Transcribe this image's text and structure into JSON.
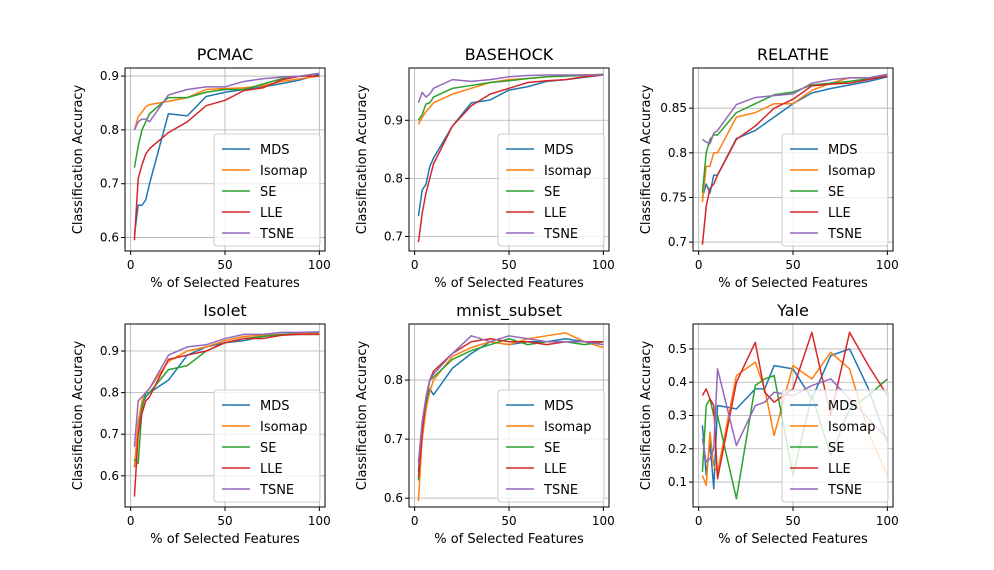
{
  "colors": {
    "MDS": "#1f77b4",
    "Isomap": "#ff7f0e",
    "SE": "#2ca02c",
    "LLE": "#d62728",
    "TSNE": "#9467bd"
  },
  "chart_data": [
    {
      "type": "line",
      "title": "PCMAC",
      "xlabel": "% of Selected Features",
      "ylabel": "Classification Accuracy",
      "xlim": [
        -3,
        103
      ],
      "ylim": [
        0.575,
        0.915
      ],
      "xticks": [
        0,
        50,
        100
      ],
      "yticks": [
        0.6,
        0.7,
        0.8,
        0.9
      ],
      "grid": true,
      "legend": "lower-right",
      "x": [
        2,
        4,
        6,
        8,
        10,
        20,
        30,
        40,
        50,
        60,
        70,
        80,
        90,
        100
      ],
      "series": [
        {
          "name": "MDS",
          "values": [
            0.605,
            0.66,
            0.66,
            0.67,
            0.7,
            0.83,
            0.826,
            0.862,
            0.87,
            0.875,
            0.88,
            0.886,
            0.893,
            0.903
          ]
        },
        {
          "name": "Isomap",
          "values": [
            0.8,
            0.825,
            0.833,
            0.843,
            0.847,
            0.853,
            0.86,
            0.875,
            0.877,
            0.878,
            0.882,
            0.89,
            0.895,
            0.9
          ]
        },
        {
          "name": "SE",
          "values": [
            0.73,
            0.77,
            0.8,
            0.815,
            0.83,
            0.86,
            0.86,
            0.87,
            0.875,
            0.875,
            0.885,
            0.895,
            0.9,
            0.905
          ]
        },
        {
          "name": "LLE",
          "values": [
            0.595,
            0.71,
            0.735,
            0.755,
            0.765,
            0.795,
            0.815,
            0.845,
            0.855,
            0.873,
            0.878,
            0.893,
            0.9,
            0.9
          ]
        },
        {
          "name": "TSNE",
          "values": [
            0.8,
            0.815,
            0.82,
            0.82,
            0.815,
            0.865,
            0.875,
            0.88,
            0.88,
            0.89,
            0.895,
            0.898,
            0.9,
            0.905
          ]
        }
      ]
    },
    {
      "type": "line",
      "title": "BASEHOCK",
      "xlabel": "% of Selected Features",
      "ylabel": "Classification Accuracy",
      "xlim": [
        -3,
        103
      ],
      "ylim": [
        0.675,
        0.99
      ],
      "xticks": [
        0,
        50,
        100
      ],
      "yticks": [
        0.7,
        0.8,
        0.9
      ],
      "grid": true,
      "legend": "lower-right",
      "x": [
        2,
        4,
        6,
        8,
        10,
        20,
        30,
        40,
        50,
        60,
        70,
        80,
        90,
        100
      ],
      "series": [
        {
          "name": "MDS",
          "values": [
            0.735,
            0.78,
            0.79,
            0.82,
            0.835,
            0.89,
            0.93,
            0.935,
            0.952,
            0.958,
            0.967,
            0.97,
            0.974,
            0.978
          ]
        },
        {
          "name": "Isomap",
          "values": [
            0.893,
            0.905,
            0.915,
            0.922,
            0.93,
            0.945,
            0.955,
            0.965,
            0.97,
            0.972,
            0.975,
            0.977,
            0.978,
            0.979
          ]
        },
        {
          "name": "SE",
          "values": [
            0.9,
            0.91,
            0.928,
            0.93,
            0.94,
            0.955,
            0.96,
            0.965,
            0.968,
            0.972,
            0.975,
            0.976,
            0.977,
            0.979
          ]
        },
        {
          "name": "LLE",
          "values": [
            0.69,
            0.74,
            0.775,
            0.8,
            0.825,
            0.89,
            0.925,
            0.945,
            0.955,
            0.965,
            0.968,
            0.97,
            0.975,
            0.978
          ]
        },
        {
          "name": "TSNE",
          "values": [
            0.93,
            0.948,
            0.94,
            0.945,
            0.955,
            0.97,
            0.967,
            0.97,
            0.975,
            0.977,
            0.978,
            0.978,
            0.978,
            0.978
          ]
        }
      ]
    },
    {
      "type": "line",
      "title": "RELATHE",
      "xlabel": "% of Selected Features",
      "ylabel": "Classification Accuracy",
      "xlim": [
        -3,
        103
      ],
      "ylim": [
        0.69,
        0.895
      ],
      "xticks": [
        0,
        50,
        100
      ],
      "yticks": [
        0.7,
        0.75,
        0.8,
        0.85
      ],
      "grid": true,
      "legend": "lower-right",
      "x": [
        2,
        4,
        6,
        8,
        10,
        20,
        30,
        40,
        50,
        60,
        70,
        80,
        90,
        100
      ],
      "series": [
        {
          "name": "MDS",
          "values": [
            0.75,
            0.765,
            0.755,
            0.775,
            0.775,
            0.816,
            0.825,
            0.84,
            0.855,
            0.867,
            0.872,
            0.876,
            0.88,
            0.885
          ]
        },
        {
          "name": "Isomap",
          "values": [
            0.745,
            0.785,
            0.785,
            0.8,
            0.8,
            0.84,
            0.845,
            0.855,
            0.855,
            0.87,
            0.878,
            0.884,
            0.884,
            0.886
          ]
        },
        {
          "name": "SE",
          "values": [
            0.755,
            0.8,
            0.815,
            0.82,
            0.82,
            0.845,
            0.855,
            0.865,
            0.868,
            0.876,
            0.878,
            0.88,
            0.883,
            0.886
          ]
        },
        {
          "name": "LLE",
          "values": [
            0.697,
            0.74,
            0.76,
            0.765,
            0.775,
            0.815,
            0.83,
            0.85,
            0.86,
            0.875,
            0.877,
            0.878,
            0.882,
            0.886
          ]
        },
        {
          "name": "TSNE",
          "values": [
            0.815,
            0.812,
            0.81,
            0.822,
            0.825,
            0.854,
            0.862,
            0.864,
            0.866,
            0.878,
            0.882,
            0.884,
            0.884,
            0.888
          ]
        }
      ]
    },
    {
      "type": "line",
      "title": "Isolet",
      "xlabel": "% of Selected Features",
      "ylabel": "Classification Accuracy",
      "xlim": [
        -3,
        103
      ],
      "ylim": [
        0.525,
        0.965
      ],
      "xticks": [
        0,
        50,
        100
      ],
      "yticks": [
        0.6,
        0.7,
        0.8,
        0.9
      ],
      "grid": true,
      "legend": "lower-right",
      "x": [
        2,
        4,
        6,
        8,
        10,
        20,
        30,
        40,
        50,
        60,
        70,
        80,
        90,
        100
      ],
      "series": [
        {
          "name": "MDS",
          "values": [
            0.62,
            0.72,
            0.77,
            0.79,
            0.8,
            0.83,
            0.89,
            0.91,
            0.92,
            0.925,
            0.935,
            0.94,
            0.943,
            0.945
          ]
        },
        {
          "name": "Isomap",
          "values": [
            0.62,
            0.73,
            0.78,
            0.8,
            0.81,
            0.875,
            0.9,
            0.91,
            0.925,
            0.935,
            0.938,
            0.94,
            0.942,
            0.942
          ]
        },
        {
          "name": "SE",
          "values": [
            0.64,
            0.63,
            0.76,
            0.8,
            0.8,
            0.855,
            0.865,
            0.9,
            0.92,
            0.93,
            0.935,
            0.94,
            0.94,
            0.94
          ]
        },
        {
          "name": "LLE",
          "values": [
            0.55,
            0.7,
            0.75,
            0.78,
            0.79,
            0.88,
            0.89,
            0.9,
            0.92,
            0.93,
            0.93,
            0.938,
            0.94,
            0.94
          ]
        },
        {
          "name": "TSNE",
          "values": [
            0.67,
            0.78,
            0.79,
            0.8,
            0.81,
            0.89,
            0.91,
            0.915,
            0.93,
            0.94,
            0.94,
            0.945,
            0.945,
            0.946
          ]
        }
      ]
    },
    {
      "type": "line",
      "title": "mnist_subset",
      "xlabel": "% of Selected Features",
      "ylabel": "Classification Accuracy",
      "xlim": [
        -3,
        103
      ],
      "ylim": [
        0.585,
        0.895
      ],
      "xticks": [
        0,
        50,
        100
      ],
      "yticks": [
        0.6,
        0.7,
        0.8
      ],
      "grid": true,
      "legend": "lower-right",
      "x": [
        2,
        4,
        6,
        8,
        10,
        20,
        30,
        40,
        50,
        60,
        70,
        80,
        90,
        100
      ],
      "series": [
        {
          "name": "MDS",
          "values": [
            0.645,
            0.72,
            0.76,
            0.785,
            0.775,
            0.82,
            0.845,
            0.865,
            0.86,
            0.865,
            0.865,
            0.87,
            0.865,
            0.86
          ]
        },
        {
          "name": "Isomap",
          "values": [
            0.595,
            0.7,
            0.75,
            0.78,
            0.8,
            0.84,
            0.855,
            0.865,
            0.86,
            0.87,
            0.875,
            0.88,
            0.865,
            0.855
          ]
        },
        {
          "name": "SE",
          "values": [
            0.63,
            0.72,
            0.76,
            0.8,
            0.805,
            0.835,
            0.85,
            0.86,
            0.87,
            0.86,
            0.865,
            0.865,
            0.86,
            0.865
          ]
        },
        {
          "name": "LLE",
          "values": [
            0.635,
            0.71,
            0.77,
            0.8,
            0.815,
            0.845,
            0.865,
            0.87,
            0.865,
            0.865,
            0.86,
            0.865,
            0.865,
            0.865
          ]
        },
        {
          "name": "TSNE",
          "values": [
            0.66,
            0.73,
            0.77,
            0.8,
            0.81,
            0.845,
            0.875,
            0.865,
            0.875,
            0.87,
            0.865,
            0.865,
            0.865,
            0.86
          ]
        }
      ]
    },
    {
      "type": "line",
      "title": "Yale",
      "xlabel": "% of Selected Features",
      "ylabel": "Classification Accuracy",
      "xlim": [
        -3,
        103
      ],
      "ylim": [
        0.025,
        0.575
      ],
      "xticks": [
        0,
        50,
        100
      ],
      "yticks": [
        0.1,
        0.2,
        0.3,
        0.4,
        0.5
      ],
      "grid": true,
      "legend": "lower-right",
      "x": [
        2,
        4,
        6,
        8,
        10,
        20,
        30,
        35,
        40,
        50,
        60,
        70,
        80,
        90,
        100
      ],
      "series": [
        {
          "name": "MDS",
          "values": [
            0.27,
            0.12,
            0.22,
            0.08,
            0.33,
            0.32,
            0.38,
            0.38,
            0.45,
            0.44,
            0.35,
            0.48,
            0.5,
            0.38,
            0.22
          ]
        },
        {
          "name": "Isomap",
          "values": [
            0.12,
            0.09,
            0.25,
            0.15,
            0.13,
            0.42,
            0.46,
            0.38,
            0.24,
            0.45,
            0.41,
            0.49,
            0.44,
            0.25,
            0.12
          ]
        },
        {
          "name": "SE",
          "values": [
            0.13,
            0.33,
            0.35,
            0.3,
            0.3,
            0.05,
            0.39,
            0.41,
            0.42,
            0.12,
            0.36,
            0.18,
            0.32,
            0.36,
            0.41
          ]
        },
        {
          "name": "LLE",
          "values": [
            0.36,
            0.38,
            0.35,
            0.33,
            0.11,
            0.4,
            0.52,
            0.37,
            0.34,
            0.38,
            0.55,
            0.3,
            0.55,
            0.45,
            0.36
          ]
        },
        {
          "name": "TSNE",
          "values": [
            0.23,
            0.16,
            0.17,
            0.2,
            0.44,
            0.21,
            0.33,
            0.34,
            0.37,
            0.36,
            0.39,
            0.41,
            0.35,
            0.29,
            0.23
          ]
        }
      ]
    }
  ]
}
